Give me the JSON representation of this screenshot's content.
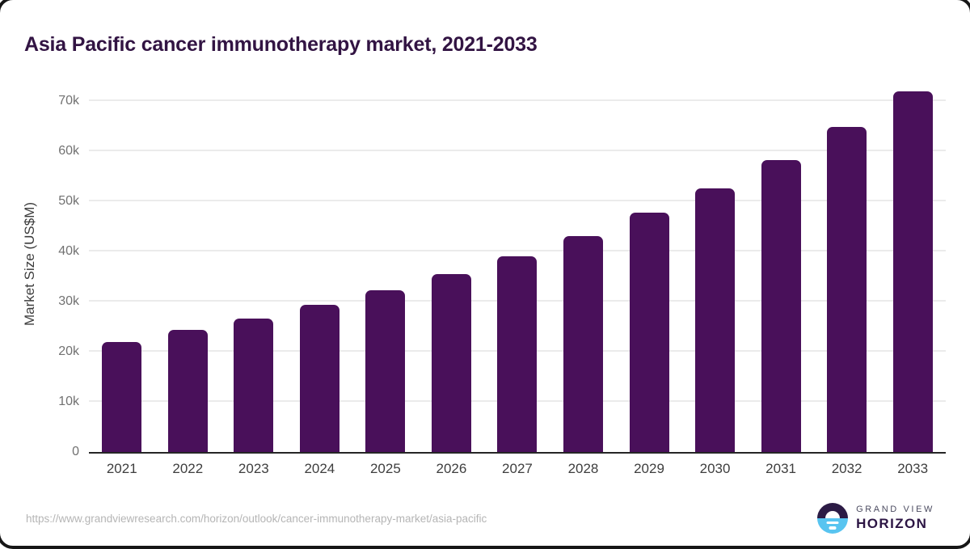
{
  "header": {
    "title": "Asia Pacific cancer immunotherapy market, 2021-2033"
  },
  "chart_data": {
    "type": "bar",
    "title": "Asia Pacific cancer immunotherapy market, 2021-2033",
    "categories": [
      "2021",
      "2022",
      "2023",
      "2024",
      "2025",
      "2026",
      "2027",
      "2028",
      "2029",
      "2030",
      "2031",
      "2032",
      "2033"
    ],
    "values": [
      22000,
      24350,
      26650,
      29400,
      32300,
      35500,
      39000,
      43100,
      47700,
      52600,
      58300,
      64900,
      72000
    ],
    "xlabel": "",
    "ylabel": "Market Size (US$M)",
    "ylim": [
      0,
      75000
    ],
    "yticks": [
      0,
      10000,
      20000,
      30000,
      40000,
      50000,
      60000,
      70000
    ],
    "ytick_labels": [
      "0",
      "10k",
      "20k",
      "30k",
      "40k",
      "50k",
      "60k",
      "70k"
    ],
    "grid": "horizontal",
    "legend": "none",
    "bar_color": "#49105A",
    "grid_color": "#ebebeb",
    "axis_color": "#262626"
  },
  "footer": {
    "source_url": "https://www.grandviewresearch.com/horizon/outlook/cancer-immunotherapy-market/asia-pacific",
    "logo_line1": "GRAND VIEW",
    "logo_line2": "HORIZON"
  }
}
